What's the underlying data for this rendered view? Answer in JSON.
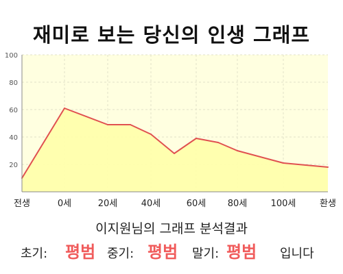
{
  "title": "재미로 보는 당신의 인생 그래프",
  "analysis": {
    "subtitle": "이지원님의 그래프 분석결과",
    "early_label": "초기:",
    "early_value": "평범",
    "middle_label": "중기:",
    "middle_value": "평범",
    "late_label": "말기:",
    "late_value": "평범",
    "suffix": "입니다"
  },
  "colors": {
    "plot_bg": "#ffffe0",
    "area_fill": "#ffffaa",
    "line": "#e05050",
    "grid": "#e2e2c8",
    "axis_text": "#555555",
    "highlight": "#f05a5a"
  },
  "chart_data": {
    "type": "area",
    "title": "재미로 보는 당신의 인생 그래프",
    "x_ticks": [
      "전생",
      "0세",
      "20세",
      "40세",
      "60세",
      "80세",
      "100세",
      "환생"
    ],
    "y_ticks": [
      20,
      40,
      60,
      80,
      100
    ],
    "ylim": [
      0,
      100
    ],
    "grid": true,
    "legend": "none",
    "series": [
      {
        "points": [
          {
            "x": "전생",
            "y": 10
          },
          {
            "x": "0세",
            "y": 61
          },
          {
            "x": "20세",
            "y": 49
          },
          {
            "x": "30세",
            "y": 49
          },
          {
            "x": "40세",
            "y": 42
          },
          {
            "x": "50세",
            "y": 28
          },
          {
            "x": "60세",
            "y": 39
          },
          {
            "x": "70세",
            "y": 36
          },
          {
            "x": "80세",
            "y": 30
          },
          {
            "x": "100세",
            "y": 21
          },
          {
            "x": "환생",
            "y": 18
          }
        ]
      }
    ]
  }
}
